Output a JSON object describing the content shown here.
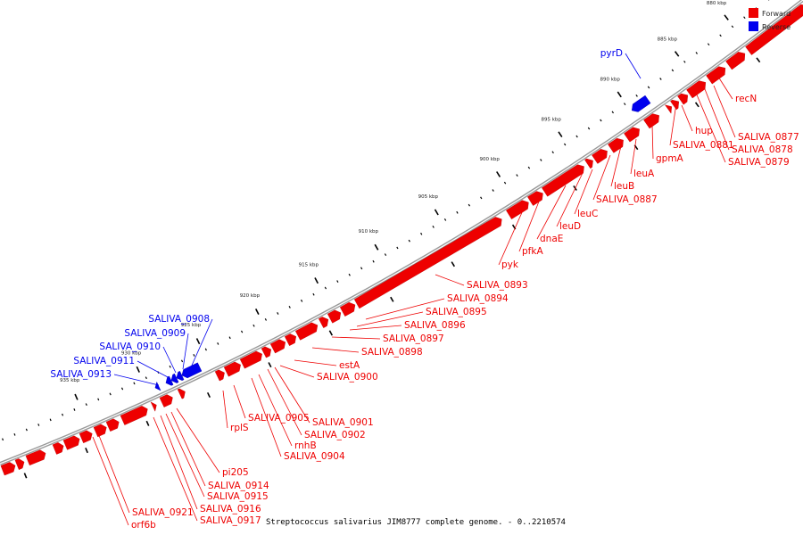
{
  "caption": "Streptococcus salivarius JIM8777 complete genome. - 0..2210574",
  "legend": [
    {
      "label": "Forward",
      "color": "#ee0000"
    },
    {
      "label": "Reverse",
      "color": "#0000ee"
    }
  ],
  "colors": {
    "forward": "#ee0000",
    "reverse": "#0000ee",
    "backbone": "#9a9a9a",
    "tick": "#000000"
  },
  "ticks": [
    "880 kbp",
    "885 kbp",
    "890 kbp",
    "895 kbp",
    "900 kbp",
    "905 kbp",
    "910 kbp",
    "915 kbp",
    "920 kbp",
    "925 kbp",
    "930 kbp",
    "935 kbp"
  ],
  "genes": [
    {
      "label": "recN",
      "strand": "forward"
    },
    {
      "label": "SALIVA_0877",
      "strand": "forward"
    },
    {
      "label": "SALIVA_0878",
      "strand": "forward"
    },
    {
      "label": "SALIVA_0879",
      "strand": "forward"
    },
    {
      "label": "SALIVA_0881",
      "strand": "forward"
    },
    {
      "label": "hup",
      "strand": "forward"
    },
    {
      "label": "gpmA",
      "strand": "forward"
    },
    {
      "label": "leuA",
      "strand": "forward"
    },
    {
      "label": "leuB",
      "strand": "forward"
    },
    {
      "label": "SALIVA_0887",
      "strand": "forward"
    },
    {
      "label": "leuC",
      "strand": "forward"
    },
    {
      "label": "leuD",
      "strand": "forward"
    },
    {
      "label": "dnaE",
      "strand": "forward"
    },
    {
      "label": "pfkA",
      "strand": "forward"
    },
    {
      "label": "pyk",
      "strand": "forward"
    },
    {
      "label": "SALIVA_0893",
      "strand": "forward"
    },
    {
      "label": "SALIVA_0894",
      "strand": "forward"
    },
    {
      "label": "SALIVA_0895",
      "strand": "forward"
    },
    {
      "label": "SALIVA_0896",
      "strand": "forward"
    },
    {
      "label": "SALIVA_0897",
      "strand": "forward"
    },
    {
      "label": "SALIVA_0898",
      "strand": "forward"
    },
    {
      "label": "estA",
      "strand": "forward"
    },
    {
      "label": "SALIVA_0900",
      "strand": "forward"
    },
    {
      "label": "SALIVA_0901",
      "strand": "forward"
    },
    {
      "label": "SALIVA_0902",
      "strand": "forward"
    },
    {
      "label": "SALIVA_0904",
      "strand": "forward"
    },
    {
      "label": "rnhB",
      "strand": "forward"
    },
    {
      "label": "SALIVA_0905",
      "strand": "forward"
    },
    {
      "label": "rplS",
      "strand": "forward"
    },
    {
      "label": "pi205",
      "strand": "forward"
    },
    {
      "label": "SALIVA_0914",
      "strand": "forward"
    },
    {
      "label": "SALIVA_0915",
      "strand": "forward"
    },
    {
      "label": "SALIVA_0916",
      "strand": "forward"
    },
    {
      "label": "SALIVA_0917",
      "strand": "forward"
    },
    {
      "label": "SALIVA_0921",
      "strand": "forward"
    },
    {
      "label": "orf6b",
      "strand": "forward"
    },
    {
      "label": "pyrD",
      "strand": "reverse"
    },
    {
      "label": "SALIVA_0908",
      "strand": "reverse"
    },
    {
      "label": "SALIVA_0909",
      "strand": "reverse"
    },
    {
      "label": "SALIVA_0910",
      "strand": "reverse"
    },
    {
      "label": "SALIVA_0911",
      "strand": "reverse"
    },
    {
      "label": "SALIVA_0913",
      "strand": "reverse"
    }
  ]
}
